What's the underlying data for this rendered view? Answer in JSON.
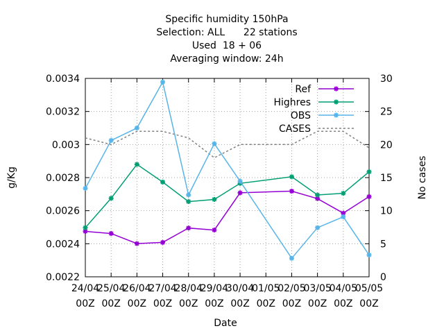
{
  "chart_data": {
    "type": "line",
    "title_lines": [
      "Specific humidity 150hPa",
      "Selection: ALL      22 stations",
      "Used  18 + 06",
      "Averaging window: 24h"
    ],
    "xlabel": "Date",
    "ylabel": "g/Kg",
    "y2label": "No cases",
    "x_ticks_top": [
      "24/04",
      "25/04",
      "26/04",
      "27/04",
      "28/04",
      "29/04",
      "30/04",
      "01/05",
      "02/05",
      "03/05",
      "04/05",
      "05/05"
    ],
    "x_ticks_bottom": [
      "00Z",
      "00Z",
      "00Z",
      "00Z",
      "00Z",
      "00Z",
      "00Z",
      "00Z",
      "00Z",
      "00Z",
      "00Z",
      "00Z"
    ],
    "ylim": [
      0.0022,
      0.0034
    ],
    "y_ticks": [
      "0.0022",
      "0.0024",
      "0.0026",
      "0.0028",
      "0.003",
      "0.0032",
      "0.0034"
    ],
    "y2lim": [
      0,
      30
    ],
    "y2_ticks": [
      "0",
      "5",
      "10",
      "15",
      "20",
      "25",
      "30"
    ],
    "grid": true,
    "legend_position": "top-right",
    "series": [
      {
        "name": "Ref",
        "axis": "y1",
        "color": "#9400d3",
        "style": "solid",
        "x": [
          0,
          1,
          2,
          3,
          4,
          5,
          6,
          8,
          9,
          10,
          11
        ],
        "values": [
          0.002475,
          0.002462,
          0.002401,
          0.002408,
          0.002495,
          0.002483,
          0.002708,
          0.002718,
          0.002673,
          0.002585,
          0.002685
        ]
      },
      {
        "name": "Highres",
        "axis": "y1",
        "color": "#009e73",
        "style": "solid",
        "x": [
          0,
          1,
          2,
          3,
          4,
          5,
          6,
          8,
          9,
          10,
          11
        ],
        "values": [
          0.002497,
          0.002675,
          0.00288,
          0.002773,
          0.002655,
          0.002668,
          0.002765,
          0.002805,
          0.002695,
          0.002705,
          0.002835
        ]
      },
      {
        "name": "OBS",
        "axis": "y1",
        "color": "#56b4e9",
        "style": "solid",
        "x": [
          0,
          1,
          2,
          3,
          4,
          5,
          6,
          8,
          9,
          10,
          11
        ],
        "values": [
          0.002735,
          0.003025,
          0.0031,
          0.003378,
          0.002695,
          0.003005,
          0.002778,
          0.002312,
          0.002497,
          0.002563,
          0.002332
        ]
      },
      {
        "name": "CASES",
        "axis": "y2",
        "color": "#808080",
        "style": "dashed",
        "x": [
          0,
          1,
          2,
          3,
          4,
          5,
          6,
          7,
          8,
          9,
          10,
          11
        ],
        "values": [
          21,
          20,
          22,
          22,
          21,
          18,
          20,
          20,
          20,
          22,
          22,
          19.5
        ]
      }
    ]
  }
}
